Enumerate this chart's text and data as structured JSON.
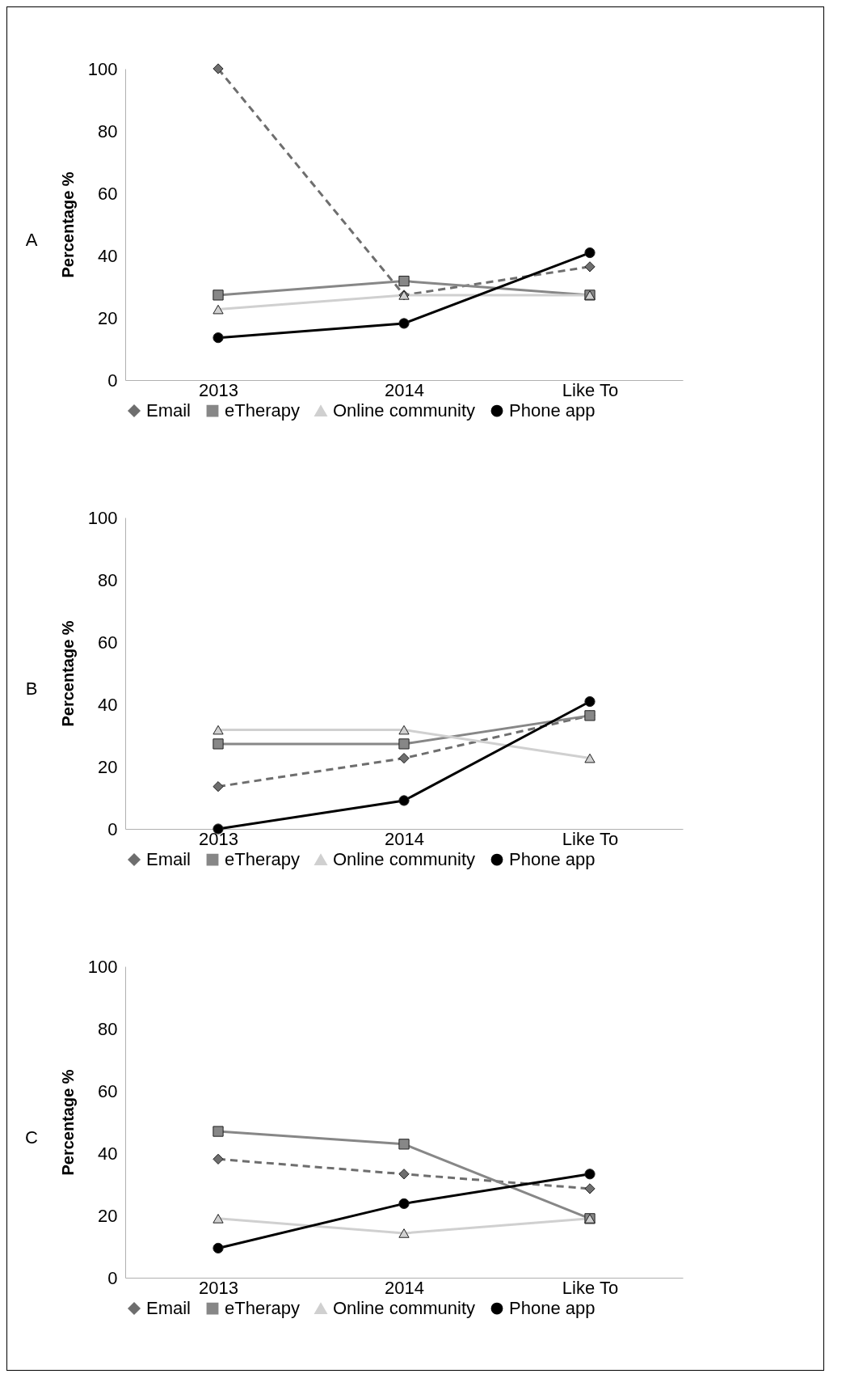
{
  "chart_data": [
    {
      "type": "line",
      "annotations": [
        "A"
      ],
      "ylabel": "Percentage %",
      "categories": [
        "2013",
        "2014",
        "Like To"
      ],
      "ylim": [
        0,
        100
      ],
      "yticks": [
        0,
        20,
        40,
        60,
        80,
        100
      ],
      "legend": "bottom",
      "series": [
        {
          "name": "Email",
          "color": "#6e6e6e",
          "line_style": "dashed",
          "marker": "diamond",
          "values": [
            100,
            27.3,
            36.4
          ]
        },
        {
          "name": "eTherapy",
          "color": "#878787",
          "line_style": "solid",
          "marker": "square",
          "values": [
            27.3,
            31.8,
            27.3
          ]
        },
        {
          "name": "Online community",
          "color": "#d0d0d0",
          "line_style": "solid",
          "marker": "triangle",
          "values": [
            22.7,
            27.3,
            27.3
          ]
        },
        {
          "name": "Phone app",
          "color": "#000000",
          "line_style": "solid",
          "marker": "circle",
          "values": [
            13.6,
            18.2,
            40.9
          ]
        }
      ]
    },
    {
      "type": "line",
      "annotations": [
        "B"
      ],
      "ylabel": "Percentage %",
      "categories": [
        "2013",
        "2014",
        "Like To"
      ],
      "ylim": [
        0,
        100
      ],
      "yticks": [
        0,
        20,
        40,
        60,
        80,
        100
      ],
      "legend": "bottom",
      "series": [
        {
          "name": "Email",
          "color": "#6e6e6e",
          "line_style": "dashed",
          "marker": "diamond",
          "values": [
            13.6,
            22.7,
            36.4
          ]
        },
        {
          "name": "eTherapy",
          "color": "#878787",
          "line_style": "solid",
          "marker": "square",
          "values": [
            27.3,
            27.3,
            36.4
          ]
        },
        {
          "name": "Online community",
          "color": "#d0d0d0",
          "line_style": "solid",
          "marker": "triangle",
          "values": [
            31.8,
            31.8,
            22.7
          ]
        },
        {
          "name": "Phone app",
          "color": "#000000",
          "line_style": "solid",
          "marker": "circle",
          "values": [
            0,
            9.1,
            40.9
          ]
        }
      ]
    },
    {
      "type": "line",
      "annotations": [
        "C"
      ],
      "ylabel": "Percentage %",
      "categories": [
        "2013",
        "2014",
        "Like To"
      ],
      "ylim": [
        0,
        100
      ],
      "yticks": [
        0,
        20,
        40,
        60,
        80,
        100
      ],
      "legend": "bottom",
      "series": [
        {
          "name": "Email",
          "color": "#6e6e6e",
          "line_style": "dashed",
          "marker": "diamond",
          "values": [
            38.1,
            33.3,
            28.6
          ]
        },
        {
          "name": "eTherapy",
          "color": "#878787",
          "line_style": "solid",
          "marker": "square",
          "values": [
            47.0,
            42.9,
            19.0
          ]
        },
        {
          "name": "Online community",
          "color": "#d0d0d0",
          "line_style": "solid",
          "marker": "triangle",
          "values": [
            19.0,
            14.3,
            19.0
          ]
        },
        {
          "name": "Phone app",
          "color": "#000000",
          "line_style": "solid",
          "marker": "circle",
          "values": [
            9.5,
            23.8,
            33.3
          ]
        }
      ]
    }
  ]
}
